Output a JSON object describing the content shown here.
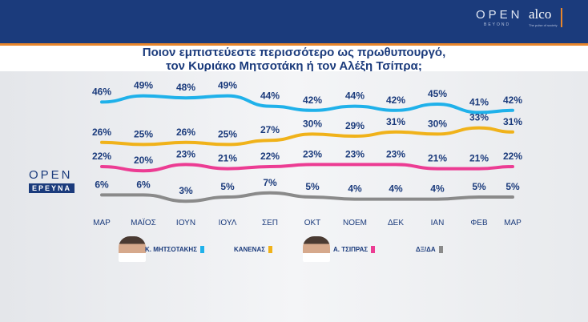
{
  "header": {
    "logo_open": "OPEN",
    "logo_open_sub": "BEYOND",
    "logo_alco": "alco",
    "logo_alco_sub": "The pulse of society"
  },
  "title_line1": "Ποιον εμπιστεύεστε περισσότερο ως πρωθυπουργό,",
  "title_line2": "τον Κυριάκο Μητσοτάκη ή τον Αλέξη Τσίπρα;",
  "watermark": {
    "open": "OPEN",
    "ereuna": "ΕΡΕΥΝΑ"
  },
  "chart_data": {
    "type": "line",
    "categories": [
      "ΜΑΡ",
      "ΜΑΪΟΣ",
      "ΙΟΥΝ",
      "ΙΟΥΛ",
      "ΣΕΠ",
      "ΟΚΤ",
      "ΝΟΕΜ",
      "ΔΕΚ",
      "ΙΑΝ",
      "ΦΕΒ",
      "ΜΑΡ"
    ],
    "series": [
      {
        "name": "Κ. ΜΗΤΣΟΤΑΚΗΣ",
        "color": "#1fb1ea",
        "values": [
          46,
          49,
          48,
          49,
          44,
          42,
          44,
          42,
          45,
          41,
          42
        ]
      },
      {
        "name": "ΚΑΝΕΝΑΣ",
        "color": "#f0b21a",
        "values": [
          26,
          25,
          26,
          25,
          27,
          30,
          29,
          31,
          30,
          33,
          31
        ]
      },
      {
        "name": "Α. ΤΣΙΠΡΑΣ",
        "color": "#ec3c93",
        "values": [
          22,
          20,
          23,
          21,
          22,
          23,
          23,
          23,
          21,
          21,
          22
        ]
      },
      {
        "name": "ΔΞ/ΔΑ",
        "color": "#8a8a8a",
        "values": [
          6,
          6,
          3,
          5,
          7,
          5,
          4,
          4,
          4,
          5,
          5
        ]
      }
    ],
    "unit": "%",
    "legend": "bottom",
    "grid": false
  }
}
